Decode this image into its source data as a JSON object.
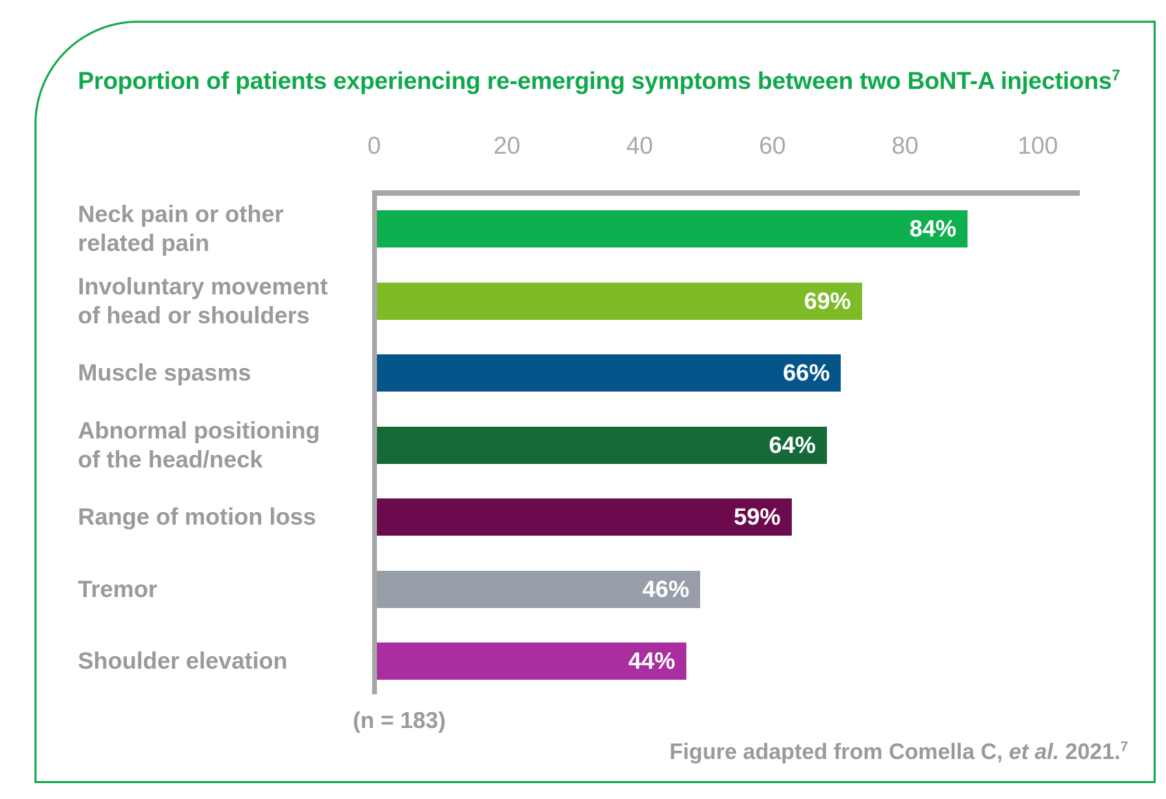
{
  "chart_data": {
    "type": "bar",
    "orientation": "horizontal",
    "title": "Proportion of patients experiencing re-emerging symptoms between two BoNT-A injections",
    "title_superscript": "7",
    "categories": [
      "Neck pain or other\nrelated pain",
      "Involuntary movement\nof head or shoulders",
      "Muscle spasms",
      "Abnormal positioning\nof the head/neck",
      "Range of motion loss",
      "Tremor",
      "Shoulder elevation"
    ],
    "values": [
      84,
      69,
      66,
      64,
      59,
      46,
      44
    ],
    "value_labels": [
      "84%",
      "69%",
      "66%",
      "64%",
      "59%",
      "46%",
      "44%"
    ],
    "bar_colors": [
      "#0DAF4F",
      "#7DBB27",
      "#04568A",
      "#156A38",
      "#6B0A4D",
      "#989EA9",
      "#A92FA0"
    ],
    "x_ticks": [
      0,
      20,
      40,
      60,
      80,
      100
    ],
    "xlim": [
      0,
      100
    ],
    "xlabel": "",
    "ylabel": "",
    "grid": false,
    "legend": false,
    "sample_note": "(n = 183)",
    "footer_prefix": "Figure adapted from Comella C, ",
    "footer_italic": "et al.",
    "footer_suffix": " 2021.",
    "footer_superscript": "7",
    "colors": {
      "frame_border": "#17A84E",
      "title_text": "#0FA84C",
      "axis_line": "#A6A6A6",
      "tick_text": "#A8A8A8",
      "category_text": "#9A9A9A",
      "bar_value_text": "#FFFFFF",
      "background": "#FFFFFF"
    }
  }
}
